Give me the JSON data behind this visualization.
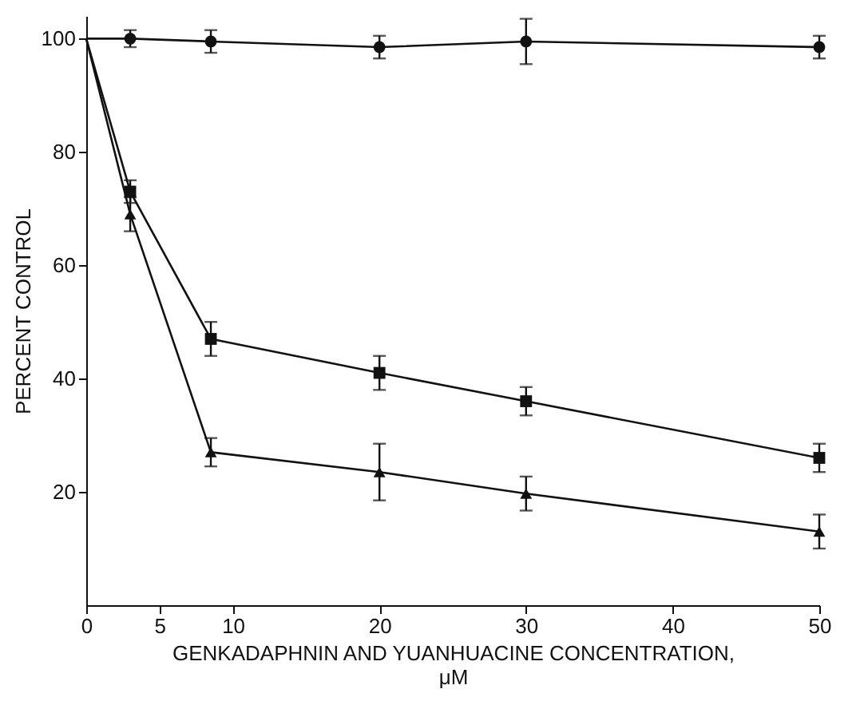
{
  "chart_data": {
    "type": "line",
    "xlabel": "GENKADAPHNIN AND YUANHUACINE CONCENTRATION, μM",
    "ylabel": "PERCENT CONTROL",
    "x": [
      0,
      3,
      8.5,
      20,
      30,
      50
    ],
    "xlim": [
      0,
      50
    ],
    "xticks": [
      0,
      5,
      10,
      20,
      30,
      40,
      50
    ],
    "ylim": [
      0,
      104
    ],
    "yticks": [
      20,
      40,
      60,
      80,
      100
    ],
    "grid": false,
    "series": [
      {
        "color": "#111111",
        "marker": "circle",
        "values": [
          100,
          100,
          99.5,
          98.5,
          99.5,
          98.5
        ],
        "errors": [
          null,
          1.5,
          2,
          2,
          4,
          2
        ]
      },
      {
        "color": "#111111",
        "marker": "square",
        "values": [
          100,
          73,
          47,
          41,
          36,
          26
        ],
        "errors": [
          null,
          2,
          3,
          3,
          2.5,
          2.5
        ]
      },
      {
        "color": "#111111",
        "marker": "triangle",
        "values": [
          100,
          69,
          27,
          23.5,
          19.7,
          13
        ],
        "errors": [
          null,
          3,
          2.5,
          5,
          3,
          3
        ]
      }
    ]
  }
}
